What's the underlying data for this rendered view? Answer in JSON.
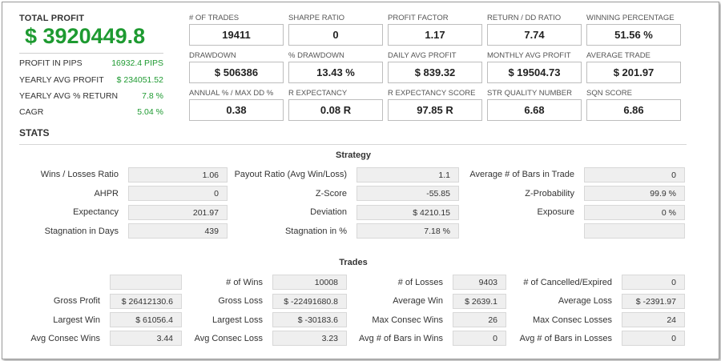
{
  "summary": {
    "total_profit_label": "TOTAL PROFIT",
    "total_profit_value": "$ 3920449.8",
    "rows": [
      {
        "label": "PROFIT IN PIPS",
        "value": "16932.4 PIPS"
      },
      {
        "label": "YEARLY AVG PROFIT",
        "value": "$ 234051.52"
      },
      {
        "label": "YEARLY AVG % RETURN",
        "value": "7.8 %"
      },
      {
        "label": "CAGR",
        "value": "5.04 %"
      }
    ]
  },
  "metrics": [
    {
      "label": "# OF TRADES",
      "value": "19411"
    },
    {
      "label": "SHARPE RATIO",
      "value": "0"
    },
    {
      "label": "PROFIT FACTOR",
      "value": "1.17"
    },
    {
      "label": "RETURN / DD RATIO",
      "value": "7.74"
    },
    {
      "label": "WINNING PERCENTAGE",
      "value": "51.56 %"
    },
    {
      "label": "DRAWDOWN",
      "value": "$ 506386"
    },
    {
      "label": "% DRAWDOWN",
      "value": "13.43 %"
    },
    {
      "label": "DAILY AVG PROFIT",
      "value": "$ 839.32"
    },
    {
      "label": "MONTHLY AVG PROFIT",
      "value": "$ 19504.73"
    },
    {
      "label": "AVERAGE TRADE",
      "value": "$ 201.97"
    },
    {
      "label": "ANNUAL % / MAX DD %",
      "value": "0.38"
    },
    {
      "label": "R EXPECTANCY",
      "value": "0.08 R"
    },
    {
      "label": "R EXPECTANCY SCORE",
      "value": "97.85 R"
    },
    {
      "label": "STR QUALITY NUMBER",
      "value": "6.68"
    },
    {
      "label": "SQN SCORE",
      "value": "6.86"
    }
  ],
  "stats_heading": "STATS",
  "strategy": {
    "title": "Strategy",
    "col1": [
      {
        "label": "Wins / Losses Ratio",
        "value": "1.06"
      },
      {
        "label": "AHPR",
        "value": "0"
      },
      {
        "label": "Expectancy",
        "value": "201.97"
      },
      {
        "label": "Stagnation in Days",
        "value": "439"
      }
    ],
    "col2": [
      {
        "label": "Payout Ratio (Avg Win/Loss)",
        "value": "1.1"
      },
      {
        "label": "Z-Score",
        "value": "-55.85"
      },
      {
        "label": "Deviation",
        "value": "$ 4210.15"
      },
      {
        "label": "Stagnation in %",
        "value": "7.18 %"
      }
    ],
    "col3": [
      {
        "label": "Average # of Bars in Trade",
        "value": "0"
      },
      {
        "label": "Z-Probability",
        "value": "99.9 %"
      },
      {
        "label": "Exposure",
        "value": "0 %"
      },
      {
        "label": "",
        "value": ""
      }
    ]
  },
  "trades": {
    "title": "Trades",
    "col1": [
      {
        "label": "",
        "value": ""
      },
      {
        "label": "Gross Profit",
        "value": "$ 26412130.6"
      },
      {
        "label": "Largest Win",
        "value": "$ 61056.4"
      },
      {
        "label": "Avg Consec Wins",
        "value": "3.44"
      }
    ],
    "col2": [
      {
        "label": "# of Wins",
        "value": "10008"
      },
      {
        "label": "Gross Loss",
        "value": "$ -22491680.8"
      },
      {
        "label": "Largest Loss",
        "value": "$ -30183.6"
      },
      {
        "label": "Avg Consec Loss",
        "value": "3.23"
      }
    ],
    "col3": [
      {
        "label": "# of Losses",
        "value": "9403"
      },
      {
        "label": "Average Win",
        "value": "$ 2639.1"
      },
      {
        "label": "Max Consec Wins",
        "value": "26"
      },
      {
        "label": "Avg # of Bars in Wins",
        "value": "0"
      }
    ],
    "col4": [
      {
        "label": "# of Cancelled/Expired",
        "value": "0"
      },
      {
        "label": "Average Loss",
        "value": "$ -2391.97"
      },
      {
        "label": "Max Consec Losses",
        "value": "24"
      },
      {
        "label": "Avg # of Bars in Losses",
        "value": "0"
      }
    ]
  }
}
